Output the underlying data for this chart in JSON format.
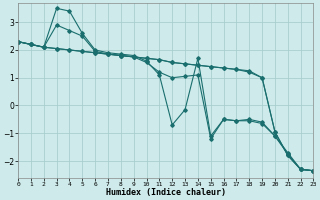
{
  "xlabel": "Humidex (Indice chaleur)",
  "ylabel": "",
  "xlim": [
    0,
    23
  ],
  "ylim": [
    -2.6,
    3.7
  ],
  "background_color": "#ceeaea",
  "grid_color": "#aacece",
  "line_color": "#1a6e6e",
  "xticks": [
    0,
    1,
    2,
    3,
    4,
    5,
    6,
    7,
    8,
    9,
    10,
    11,
    12,
    13,
    14,
    15,
    16,
    17,
    18,
    19,
    20,
    21,
    22,
    23
  ],
  "yticks": [
    -2,
    -1,
    0,
    1,
    2,
    3
  ],
  "series": [
    [
      2.3,
      2.2,
      2.1,
      3.5,
      3.4,
      2.6,
      2.0,
      1.9,
      1.85,
      1.8,
      1.6,
      1.1,
      -0.7,
      -0.15,
      1.7,
      -1.1,
      -0.5,
      -0.55,
      -0.5,
      -0.6,
      -1.1,
      -1.7,
      -2.3,
      -2.35
    ],
    [
      2.3,
      2.2,
      2.1,
      2.9,
      2.7,
      2.5,
      1.95,
      1.85,
      1.8,
      1.75,
      1.55,
      1.2,
      1.0,
      1.05,
      1.1,
      -1.2,
      -0.5,
      -0.55,
      -0.55,
      -0.65,
      -1.1,
      -1.75,
      -2.3,
      -2.35
    ],
    [
      2.3,
      2.2,
      2.1,
      2.05,
      2.0,
      1.95,
      1.9,
      1.85,
      1.8,
      1.75,
      1.7,
      1.65,
      1.55,
      1.5,
      1.45,
      1.4,
      1.35,
      1.3,
      1.2,
      1.0,
      -0.95,
      -1.8,
      -2.3,
      -2.35
    ],
    [
      2.3,
      2.2,
      2.1,
      2.05,
      2.0,
      1.95,
      1.9,
      1.85,
      1.8,
      1.75,
      1.7,
      1.65,
      1.55,
      1.5,
      1.45,
      1.4,
      1.35,
      1.3,
      1.25,
      1.0,
      -0.95,
      -1.8,
      -2.3,
      -2.35
    ]
  ]
}
